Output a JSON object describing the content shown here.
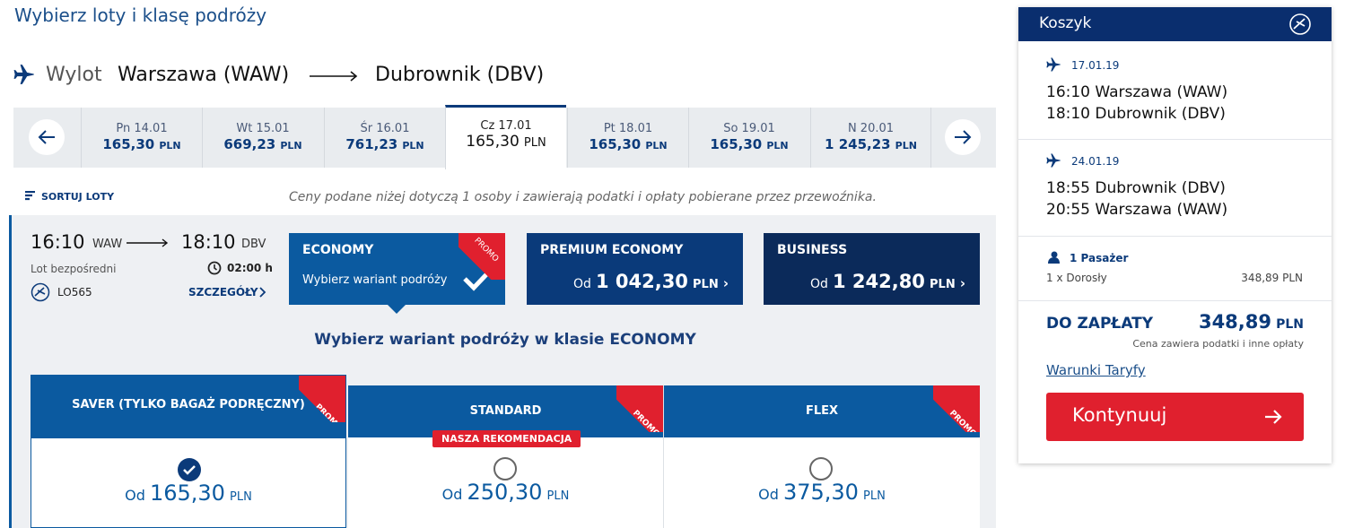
{
  "page": {
    "title": "Wybierz loty i klasę podróży"
  },
  "route": {
    "label": "Wylot",
    "from": "Warszawa (WAW)",
    "to": "Dubrownik (DBV)"
  },
  "dates": [
    {
      "day": "Pn 14.01",
      "price": "165,30",
      "currency": "PLN"
    },
    {
      "day": "Wt 15.01",
      "price": "669,23",
      "currency": "PLN"
    },
    {
      "day": "Śr 16.01",
      "price": "761,23",
      "currency": "PLN"
    },
    {
      "day": "Cz 17.01",
      "price": "165,30",
      "currency": "PLN"
    },
    {
      "day": "Pt 18.01",
      "price": "165,30",
      "currency": "PLN"
    },
    {
      "day": "So 19.01",
      "price": "165,30",
      "currency": "PLN"
    },
    {
      "day": "N 20.01",
      "price": "1 245,23",
      "currency": "PLN"
    }
  ],
  "sort": "SORTUJ LOTY",
  "note": "Ceny podane niżej dotyczą 1 osoby i zawierają podatki i opłaty pobierane przez przewoźnika.",
  "flight": {
    "dep_time": "16:10",
    "dep": "WAW",
    "arr_time": "18:10",
    "arr": "DBV",
    "type": "Lot bezpośredni",
    "duration": "02:00 h",
    "number": "LO565",
    "details": "SZCZEGÓŁY"
  },
  "classes": [
    {
      "name": "ECONOMY",
      "text": "Wybierz wariant podróży",
      "promo": "PROMO"
    },
    {
      "name": "PREMIUM ECONOMY",
      "prefix": "Od",
      "price": "1 042,30",
      "currency": "PLN"
    },
    {
      "name": "BUSINESS",
      "prefix": "Od",
      "price": "1 242,80",
      "currency": "PLN"
    }
  ],
  "fare_heading": "Wybierz wariant podróży w klasie ECONOMY",
  "fares": [
    {
      "name": "SAVER (TYLKO BAGAŻ PODRĘCZNY)",
      "promo": "PROMO",
      "prefix": "Od",
      "price": "165,30",
      "currency": "PLN"
    },
    {
      "name": "STANDARD",
      "promo": "PROMO",
      "badge": "NASZA REKOMENDACJA",
      "prefix": "Od",
      "price": "250,30",
      "currency": "PLN"
    },
    {
      "name": "FLEX",
      "promo": "PROMO",
      "prefix": "Od",
      "price": "375,30",
      "currency": "PLN"
    }
  ],
  "cart": {
    "title": "Koszyk",
    "legs": [
      {
        "date": "17.01.19",
        "line1": "16:10 Warszawa (WAW)",
        "line2": "18:10 Dubrownik (DBV)"
      },
      {
        "date": "24.01.19",
        "line1": "18:55 Dubrownik (DBV)",
        "line2": "20:55 Warszawa (WAW)"
      }
    ],
    "passengers": "1 Pasażer",
    "passenger_row": "1 x Dorosły",
    "passenger_price": "348,89 PLN",
    "total_label": "DO ZAPŁATY",
    "total": "348,89",
    "total_currency": "PLN",
    "total_note": "Cena zawiera podatki i inne opłaty",
    "terms": "Warunki Taryfy",
    "continue": "Kontynuuj"
  }
}
